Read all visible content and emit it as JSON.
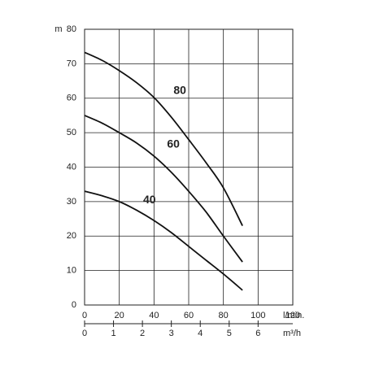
{
  "chart_data": {
    "type": "line",
    "y_label": "m",
    "x_label": "l/min.",
    "x2_label": "m³/h",
    "x": [
      0,
      10,
      20,
      30,
      40,
      50,
      60,
      70,
      80,
      91
    ],
    "series": [
      {
        "name": "80",
        "color": "#111111",
        "values": [
          73.3,
          71,
          68,
          64.5,
          60.2,
          54.5,
          48,
          41.3,
          34,
          23
        ]
      },
      {
        "name": "60",
        "color": "#111111",
        "values": [
          55,
          52.8,
          50,
          47,
          43.2,
          38.5,
          33,
          27,
          20,
          12.5
        ]
      },
      {
        "name": "40",
        "color": "#111111",
        "values": [
          33,
          31.7,
          30,
          27.5,
          24.5,
          21,
          17,
          13,
          9,
          4.3
        ]
      }
    ],
    "xlim": [
      0,
      120
    ],
    "xticks": [
      0,
      20,
      40,
      60,
      80,
      100,
      120
    ],
    "ylim": [
      0,
      80
    ],
    "yticks": [
      0,
      10,
      20,
      30,
      40,
      50,
      60,
      70,
      80
    ],
    "x2lim": [
      0,
      7.2
    ],
    "x2ticks": [
      0,
      1,
      2,
      3,
      4,
      5,
      6
    ],
    "grid": true
  }
}
